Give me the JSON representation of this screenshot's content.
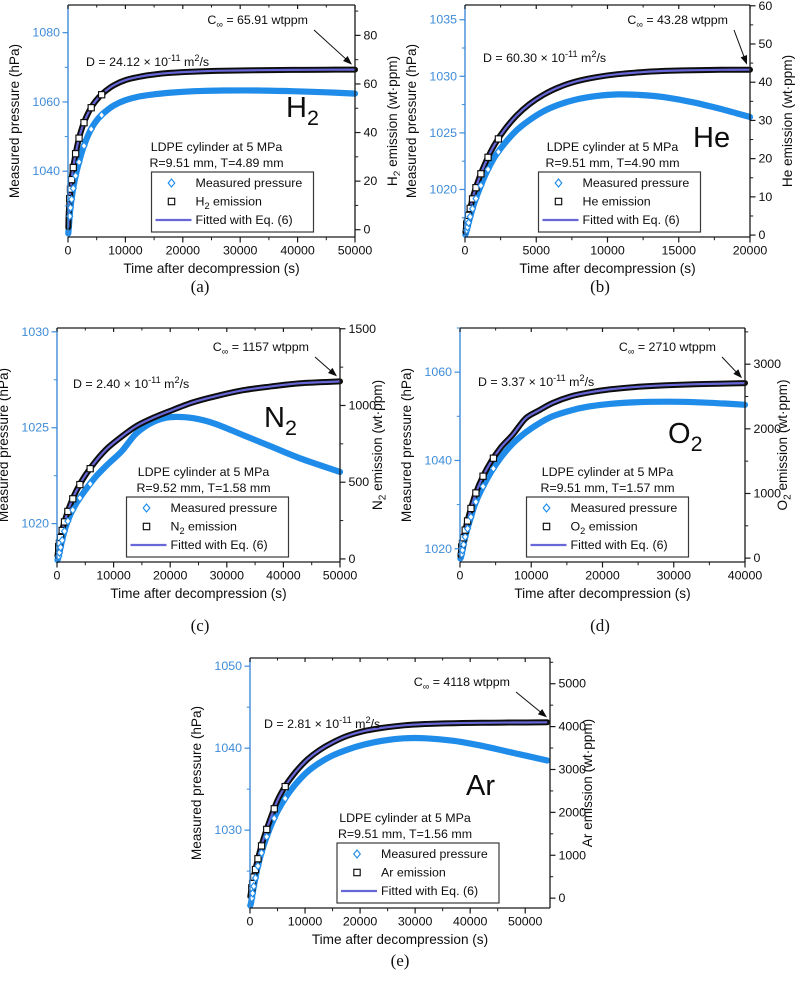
{
  "colors": {
    "data_blue": "#1f8cea",
    "axis_blue": "#3e8cd8",
    "fit_line": "#6767d8",
    "black": "#0d0d0d",
    "frame": "#1a1a1a"
  },
  "chart_data": [
    {
      "id": "a",
      "type": "scatter-line",
      "caption": "(a)",
      "gas": [
        [
          "H"
        ],
        [
          "2",
          "sub"
        ]
      ],
      "xlabel": "Time after decompression (s)",
      "x": {
        "min": 0,
        "max": 50000,
        "majors": [
          0,
          10000,
          20000,
          30000,
          40000,
          50000
        ]
      },
      "pressure": {
        "label": "Measured pressure (hPa)",
        "min": 1021,
        "max": 1088,
        "majors": [
          1040,
          1060,
          1080
        ]
      },
      "emission": {
        "label": [
          [
            "H"
          ],
          [
            "2",
            "sub"
          ],
          [
            " emission (wt·ppm)"
          ]
        ],
        "min": -3,
        "max": 92.5,
        "majors": [
          0,
          20,
          40,
          60,
          80
        ]
      },
      "c_inf": [
        [
          "C"
        ],
        [
          "∞",
          "sub"
        ],
        [
          " = 65.91 wtppm"
        ]
      ],
      "d_label": [
        [
          "D = 24.12 × 10"
        ],
        [
          "-11",
          "sup"
        ],
        [
          " m"
        ],
        [
          "2",
          "sup"
        ],
        [
          "/s"
        ]
      ],
      "conditions": [
        "LDPE cylinder at 5 MPa",
        "R=9.51 mm, T=4.89 mm"
      ],
      "legend": [
        {
          "marker": "diamond",
          "label": [
            [
              "Measured pressure"
            ]
          ]
        },
        {
          "marker": "square",
          "label": [
            [
              "H"
            ],
            [
              "2",
              "sub"
            ],
            [
              " emission"
            ]
          ]
        },
        {
          "marker": "line",
          "label": [
            [
              "Fitted with Eq. (6)"
            ]
          ]
        }
      ],
      "series": {
        "x": [
          50,
          150,
          400,
          800,
          1300,
          1900,
          2600,
          3400,
          4300,
          5300,
          6500,
          8000,
          10000,
          12500,
          15000,
          18000,
          22000,
          27000,
          33000,
          39000,
          45000,
          50000
        ],
        "pressure": [
          1022,
          1024,
          1029,
          1034,
          1038.5,
          1042.5,
          1046.5,
          1050,
          1053,
          1055.3,
          1057.2,
          1059,
          1060.5,
          1061.6,
          1062.2,
          1062.7,
          1063.1,
          1063.3,
          1063.3,
          1063.1,
          1062.8,
          1062.4
        ],
        "emission": [
          1,
          8,
          16,
          24,
          31,
          37.5,
          43,
          47.5,
          51.3,
          54.3,
          57,
          59.5,
          61.6,
          63,
          63.9,
          64.6,
          65.1,
          65.45,
          65.65,
          65.78,
          65.85,
          65.91
        ]
      }
    },
    {
      "id": "b",
      "type": "scatter-line",
      "caption": "(b)",
      "gas": [
        [
          "He"
        ]
      ],
      "xlabel": "Time after decompression (s)",
      "x": {
        "min": 0,
        "max": 20000,
        "majors": [
          0,
          5000,
          10000,
          15000,
          20000
        ]
      },
      "pressure": {
        "label": "Measured pressure (hPa)",
        "min": 1015.8,
        "max": 1036.3,
        "majors": [
          1020,
          1025,
          1030,
          1035
        ]
      },
      "emission": {
        "label": [
          [
            "He emission (wt·ppm)"
          ]
        ],
        "min": -0.5,
        "max": 60.2,
        "majors": [
          0,
          10,
          20,
          30,
          40,
          50,
          60
        ]
      },
      "c_inf": [
        [
          "C"
        ],
        [
          "∞",
          "sub"
        ],
        [
          " = 43.28 wtppm"
        ]
      ],
      "d_label": [
        [
          "D = 60.30 × 10"
        ],
        [
          "-11",
          "sup"
        ],
        [
          " m"
        ],
        [
          "2",
          "sup"
        ],
        [
          "/s"
        ]
      ],
      "conditions": [
        "LDPE cylinder at 5 MPa",
        "R=9.51 mm, T=4.90 mm"
      ],
      "legend": [
        {
          "marker": "diamond",
          "label": [
            [
              "Measured pressure"
            ]
          ]
        },
        {
          "marker": "square",
          "label": [
            [
              "He emission"
            ]
          ]
        },
        {
          "marker": "line",
          "label": [
            [
              "Fitted with Eq. (6)"
            ]
          ]
        }
      ],
      "series": {
        "x": [
          30,
          100,
          300,
          600,
          1000,
          1500,
          2100,
          2800,
          3600,
          4500,
          5500,
          6600,
          7800,
          9200,
          10700,
          12300,
          14000,
          16000,
          18000,
          20000
        ],
        "pressure": [
          1016,
          1016.3,
          1017.3,
          1018.6,
          1020,
          1021.5,
          1022.9,
          1024.1,
          1025.2,
          1026.1,
          1026.9,
          1027.5,
          1027.95,
          1028.25,
          1028.4,
          1028.35,
          1028.15,
          1027.7,
          1027.1,
          1026.4
        ],
        "emission": [
          0.8,
          2.5,
          6,
          10.5,
          15,
          19.5,
          23.8,
          27.7,
          31.2,
          34.2,
          36.7,
          38.7,
          40.2,
          41.3,
          42.1,
          42.6,
          42.95,
          43.15,
          43.25,
          43.28
        ]
      }
    },
    {
      "id": "c",
      "type": "scatter-line",
      "caption": "(c)",
      "gas": [
        [
          "N"
        ],
        [
          "2",
          "sub"
        ]
      ],
      "xlabel": "Time after decompression (s)",
      "x": {
        "min": 0,
        "max": 50000,
        "majors": [
          0,
          10000,
          20000,
          30000,
          40000,
          50000
        ]
      },
      "pressure": {
        "label": "Measured pressure (hPa)",
        "min": 1018,
        "max": 1030.2,
        "majors": [
          1020,
          1025,
          1030
        ]
      },
      "emission": {
        "label": [
          [
            "N"
          ],
          [
            "2",
            "sub"
          ],
          [
            " emission (wt·ppm)"
          ]
        ],
        "min": -20,
        "max": 1505,
        "majors": [
          0,
          500,
          1000,
          1500
        ]
      },
      "c_inf": [
        [
          "C"
        ],
        [
          "∞",
          "sub"
        ],
        [
          " = 1157 wtppm"
        ]
      ],
      "d_label": [
        [
          "D = 2.40 × 10"
        ],
        [
          "-11",
          "sup"
        ],
        [
          " m"
        ],
        [
          "2",
          "sup"
        ],
        [
          "/s"
        ]
      ],
      "conditions": [
        "LDPE cylinder at 5 MPa",
        "R=9.52 mm, T=1.58 mm"
      ],
      "legend": [
        {
          "marker": "diamond",
          "label": [
            [
              "Measured pressure"
            ]
          ]
        },
        {
          "marker": "square",
          "label": [
            [
              "N"
            ],
            [
              "2",
              "sub"
            ],
            [
              " emission"
            ]
          ]
        },
        {
          "marker": "line",
          "label": [
            [
              "Fitted with Eq. (6)"
            ]
          ]
        }
      ],
      "series": {
        "x": [
          80,
          300,
          800,
          1500,
          2400,
          3500,
          5000,
          7000,
          9000,
          11500,
          14000,
          17000,
          20000,
          24000,
          28000,
          33000,
          38000,
          43000,
          50000
        ],
        "pressure": [
          1018.1,
          1018.3,
          1019,
          1019.8,
          1020.5,
          1021.1,
          1021.75,
          1022.5,
          1023.1,
          1023.8,
          1024.7,
          1025.3,
          1025.55,
          1025.5,
          1025.2,
          1024.6,
          1024,
          1023.4,
          1022.7
        ],
        "emission": [
          20,
          80,
          170,
          265,
          360,
          450,
          545,
          645,
          725,
          800,
          865,
          920,
          965,
          1020,
          1060,
          1100,
          1125,
          1145,
          1157
        ]
      }
    },
    {
      "id": "d",
      "type": "scatter-line",
      "caption": "(d)",
      "gas": [
        [
          "O"
        ],
        [
          "2",
          "sub"
        ]
      ],
      "xlabel": "Time after decompression (s)",
      "x": {
        "min": 0,
        "max": 40000,
        "majors": [
          0,
          10000,
          20000,
          30000,
          40000
        ]
      },
      "pressure": {
        "label": "Measured pressure (hPa)",
        "min": 1017,
        "max": 1070,
        "majors": [
          1020,
          1040,
          1060
        ]
      },
      "emission": {
        "label": [
          [
            "O"
          ],
          [
            "2",
            "sub"
          ],
          [
            " emission (wt·ppm)"
          ]
        ],
        "min": -60,
        "max": 3560,
        "majors": [
          0,
          1000,
          2000,
          3000
        ]
      },
      "c_inf": [
        [
          "C"
        ],
        [
          "∞",
          "sub"
        ],
        [
          " = 2710 wtppm"
        ]
      ],
      "d_label": [
        [
          "D = 3.37 × 10"
        ],
        [
          "-11",
          "sup"
        ],
        [
          " m"
        ],
        [
          "2",
          "sup"
        ],
        [
          "/s"
        ]
      ],
      "conditions": [
        "LDPE cylinder at 5 MPa",
        "R=9.51 mm, T=1.57 mm"
      ],
      "legend": [
        {
          "marker": "diamond",
          "label": [
            [
              "Measured pressure"
            ]
          ]
        },
        {
          "marker": "square",
          "label": [
            [
              "O"
            ],
            [
              "2",
              "sub"
            ],
            [
              " emission"
            ]
          ]
        },
        {
          "marker": "line",
          "label": [
            [
              "Fitted with Eq. (6)"
            ]
          ]
        }
      ],
      "series": {
        "x": [
          60,
          200,
          700,
          1400,
          2200,
          3200,
          4400,
          5800,
          7400,
          9200,
          11000,
          13000,
          15500,
          18000,
          21000,
          25000,
          29000,
          33000,
          37000,
          40000
        ],
        "pressure": [
          1017.8,
          1018.5,
          1022.5,
          1026.5,
          1030.5,
          1034,
          1037.5,
          1040.8,
          1043.8,
          1046.3,
          1048.3,
          1050,
          1051.3,
          1052.2,
          1052.8,
          1053.2,
          1053.3,
          1053.2,
          1052.9,
          1052.6
        ],
        "emission": [
          40,
          150,
          420,
          720,
          1000,
          1260,
          1500,
          1720,
          1910,
          2160,
          2280,
          2400,
          2500,
          2560,
          2610,
          2650,
          2675,
          2690,
          2700,
          2708
        ]
      }
    },
    {
      "id": "e",
      "type": "scatter-line",
      "caption": "(e)",
      "gas": [
        [
          "Ar"
        ]
      ],
      "xlabel": "Time after decompression (s)",
      "x": {
        "min": 0,
        "max": 54500,
        "majors": [
          0,
          10000,
          20000,
          30000,
          40000,
          50000
        ]
      },
      "pressure": {
        "label": "Measured pressure (hPa)",
        "min": 1020.5,
        "max": 1051,
        "majors": [
          1030,
          1040,
          1050
        ]
      },
      "emission": {
        "label": [
          [
            "Ar emission (wt·ppm)"
          ]
        ],
        "min": -230,
        "max": 5600,
        "majors": [
          0,
          1000,
          2000,
          3000,
          4000,
          5000
        ]
      },
      "c_inf": [
        [
          "C"
        ],
        [
          "∞",
          "sub"
        ],
        [
          " = 4118 wtppm"
        ]
      ],
      "d_label": [
        [
          "D = 2.81 × 10"
        ],
        [
          "-11",
          "sup"
        ],
        [
          " m"
        ],
        [
          "2",
          "sup"
        ],
        [
          "/s"
        ]
      ],
      "conditions": [
        "LDPE cylinder at 5 MPa",
        "R=9.51 mm, T=1.56 mm"
      ],
      "legend": [
        {
          "marker": "diamond",
          "label": [
            [
              "Measured pressure"
            ]
          ]
        },
        {
          "marker": "square",
          "label": [
            [
              "Ar emission"
            ]
          ]
        },
        {
          "marker": "line",
          "label": [
            [
              "Fitted with Eq. (6)"
            ]
          ]
        }
      ],
      "series": {
        "x": [
          60,
          200,
          700,
          1500,
          2500,
          3700,
          5000,
          6600,
          8400,
          10400,
          12600,
          15000,
          17600,
          20500,
          24000,
          28000,
          32000,
          37000,
          42000,
          48000,
          54000
        ],
        "pressure": [
          1020.8,
          1021.2,
          1023.2,
          1025.8,
          1028.2,
          1030.4,
          1032.3,
          1034.1,
          1035.7,
          1037.1,
          1038.2,
          1039.1,
          1039.8,
          1040.4,
          1040.9,
          1041.2,
          1041.2,
          1040.9,
          1040.3,
          1039.4,
          1038.5
        ],
        "emission": [
          40,
          150,
          500,
          950,
          1400,
          1850,
          2280,
          2650,
          2960,
          3230,
          3450,
          3630,
          3780,
          3890,
          3970,
          4030,
          4060,
          4080,
          4090,
          4095,
          4100
        ]
      }
    }
  ]
}
